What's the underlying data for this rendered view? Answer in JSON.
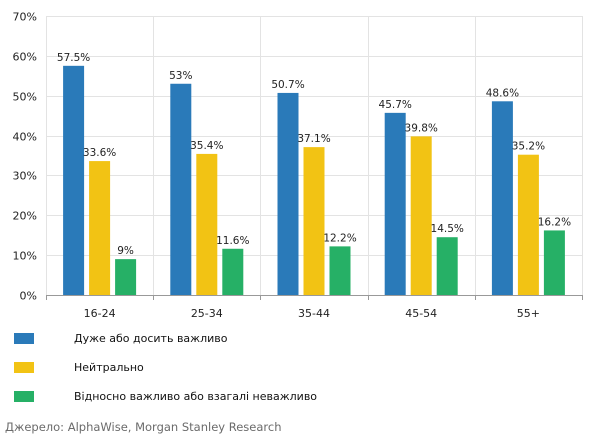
{
  "chart_data": {
    "type": "bar",
    "categories": [
      "16-24",
      "25-34",
      "35-44",
      "45-54",
      "55+"
    ],
    "series": [
      {
        "name": "Дуже або досить важливо",
        "color": "#2a7ab9",
        "values": [
          57.5,
          53,
          50.7,
          45.7,
          48.6
        ]
      },
      {
        "name": "Нейтрально",
        "color": "#f2c314",
        "values": [
          33.6,
          35.4,
          37.1,
          39.8,
          35.2
        ]
      },
      {
        "name": "Відносно важливо або взагалі неважливо",
        "color": "#26b066",
        "values": [
          9,
          11.6,
          12.2,
          14.5,
          16.2
        ]
      }
    ],
    "data_labels": [
      [
        "57.5%",
        "53%",
        "50.7%",
        "45.7%",
        "48.6%"
      ],
      [
        "33.6%",
        "35.4%",
        "37.1%",
        "39.8%",
        "35.2%"
      ],
      [
        "9%",
        "11.6%",
        "12.2%",
        "14.5%",
        "16.2%"
      ]
    ],
    "y_ticks": [
      0,
      10,
      20,
      30,
      40,
      50,
      60,
      70
    ],
    "y_tick_labels": [
      "0%",
      "10%",
      "20%",
      "30%",
      "40%",
      "50%",
      "60%",
      "70%"
    ],
    "ylim": [
      0,
      70
    ],
    "grid": true,
    "legend_position": "bottom-left"
  },
  "source_text": "Джерело: AlphaWise, Morgan Stanley Research"
}
